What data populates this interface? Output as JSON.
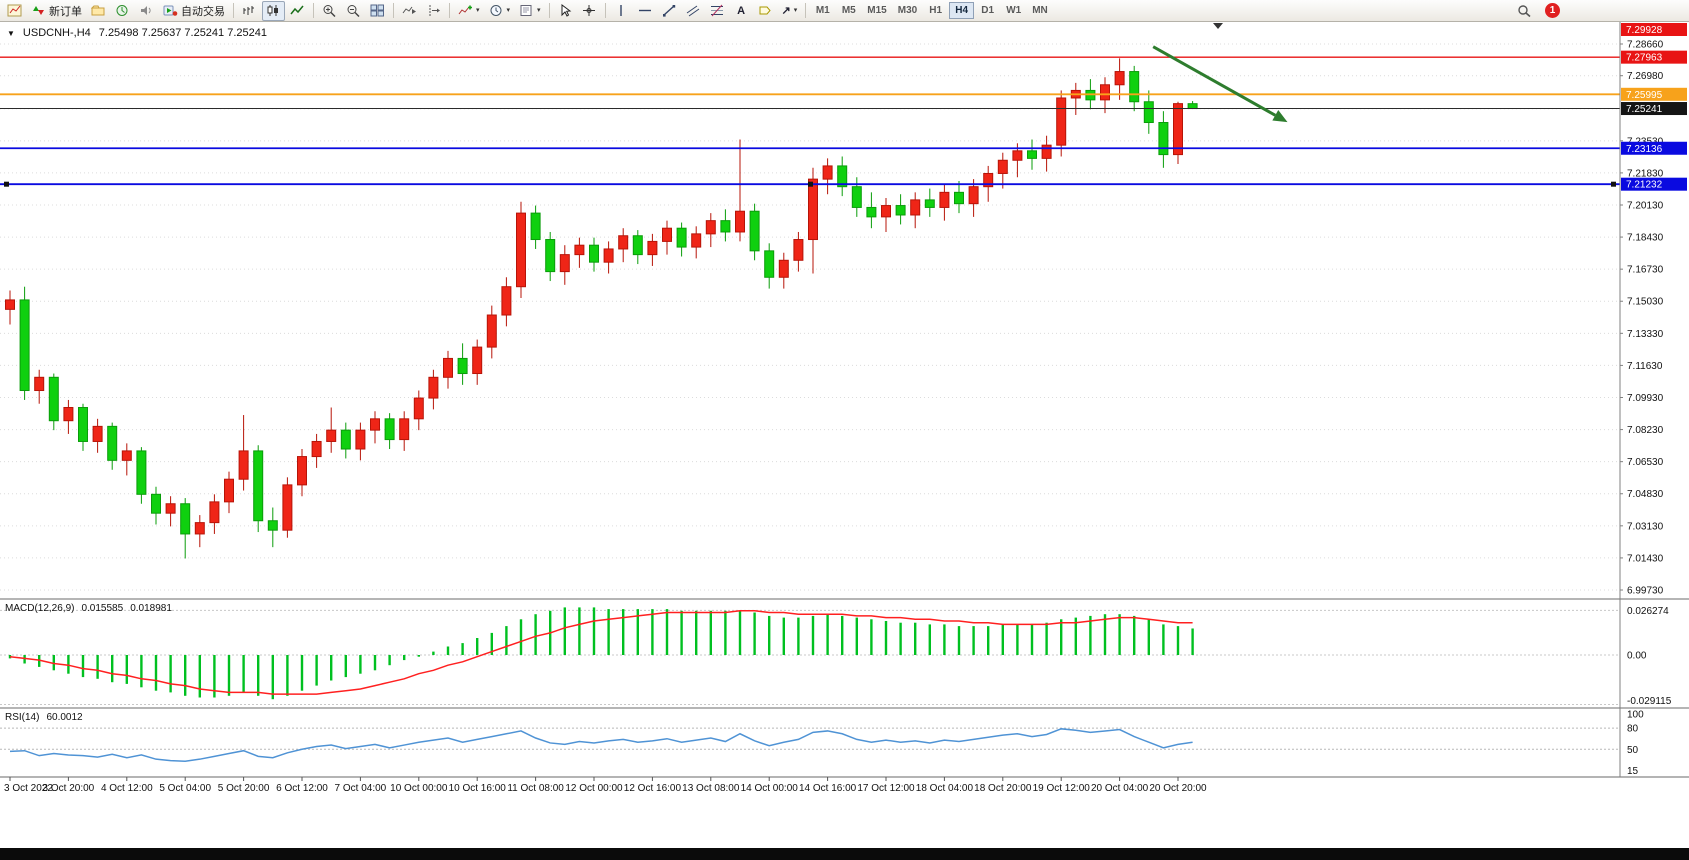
{
  "icons": {
    "menu_caret": "▼",
    "dropdown_caret": "▾",
    "text_tool": "A",
    "arrows_tool": "↗"
  },
  "toolbar": {
    "new_order_label": "新订单",
    "auto_trading_label": "自动交易",
    "timeframes": [
      "M1",
      "M5",
      "M15",
      "M30",
      "H1",
      "H4",
      "D1",
      "W1",
      "MN"
    ],
    "active_timeframe": "H4",
    "notification_count": "1"
  },
  "chart": {
    "title_symbol": "USDCNH-,H4",
    "title_ohlc": "7.25498 7.25637 7.25241 7.25241",
    "price_axis_labels": [
      "7.28660",
      "7.26980",
      "7.23530",
      "7.21830",
      "7.20130",
      "7.18430",
      "7.16730",
      "7.15030",
      "7.13330",
      "7.11630",
      "7.09930",
      "7.08230",
      "7.06530",
      "7.04830",
      "7.03130",
      "7.01430",
      "6.99730"
    ],
    "price_badges": [
      {
        "text": "7.29928",
        "bg": "#e81414"
      },
      {
        "text": "7.27963",
        "bg": "#e81414"
      },
      {
        "text": "7.25995",
        "bg": "#f7a21b"
      },
      {
        "text": "7.25241",
        "bg": "#151515"
      },
      {
        "text": "7.23136",
        "bg": "#0a0ae0"
      },
      {
        "text": "7.21232",
        "bg": "#0a0ae0"
      }
    ],
    "time_axis_labels": [
      "3 Oct 2022",
      "3 Oct 20:00",
      "4 Oct 12:00",
      "5 Oct 04:00",
      "5 Oct 20:00",
      "6 Oct 12:00",
      "7 Oct 04:00",
      "10 Oct 00:00",
      "10 Oct 16:00",
      "11 Oct 08:00",
      "12 Oct 00:00",
      "12 Oct 16:00",
      "13 Oct 08:00",
      "14 Oct 00:00",
      "14 Oct 16:00",
      "17 Oct 12:00",
      "18 Oct 04:00",
      "18 Oct 20:00",
      "19 Oct 12:00",
      "20 Oct 04:00",
      "20 Oct 20:00"
    ]
  },
  "macd": {
    "name": "MACD(12,26,9)",
    "main_value": "0.015585",
    "signal_value": "0.018981",
    "axis_labels": [
      "0.026274",
      "0.00",
      "-0.029115"
    ]
  },
  "rsi": {
    "name": "RSI(14)",
    "value": "60.0012",
    "axis_labels": [
      "100",
      "80",
      "50",
      "15"
    ]
  },
  "chart_data": {
    "type": "candlestick",
    "symbol": "USDCNH",
    "timeframe": "H4",
    "price_min": 6.9973,
    "price_max": 7.2866,
    "grid_step": 0.017,
    "grid_prices": [
      6.9973,
      7.0143,
      7.0313,
      7.0483,
      7.0653,
      7.0823,
      7.0993,
      7.1163,
      7.1333,
      7.1503,
      7.1673,
      7.1843,
      7.2013,
      7.2183,
      7.2353,
      7.2523,
      7.2698,
      7.2866
    ],
    "bull_color": "#ef2517",
    "bull_border": "#b71408",
    "bear_color": "#0fd00f",
    "bear_border": "#0a9c0a",
    "candles": [
      [
        7.146,
        7.156,
        7.138,
        7.151
      ],
      [
        7.151,
        7.158,
        7.098,
        7.103
      ],
      [
        7.103,
        7.114,
        7.096,
        7.11
      ],
      [
        7.11,
        7.112,
        7.082,
        7.087
      ],
      [
        7.087,
        7.098,
        7.08,
        7.094
      ],
      [
        7.094,
        7.096,
        7.071,
        7.076
      ],
      [
        7.076,
        7.088,
        7.07,
        7.084
      ],
      [
        7.084,
        7.086,
        7.061,
        7.066
      ],
      [
        7.066,
        7.075,
        7.058,
        7.071
      ],
      [
        7.071,
        7.073,
        7.043,
        7.048
      ],
      [
        7.048,
        7.052,
        7.032,
        7.038
      ],
      [
        7.038,
        7.047,
        7.031,
        7.043
      ],
      [
        7.043,
        7.046,
        7.014,
        7.027
      ],
      [
        7.027,
        7.037,
        7.02,
        7.033
      ],
      [
        7.033,
        7.048,
        7.027,
        7.044
      ],
      [
        7.044,
        7.06,
        7.038,
        7.056
      ],
      [
        7.056,
        7.09,
        7.05,
        7.071
      ],
      [
        7.071,
        7.074,
        7.028,
        7.034
      ],
      [
        7.034,
        7.041,
        7.02,
        7.029
      ],
      [
        7.029,
        7.057,
        7.025,
        7.053
      ],
      [
        7.053,
        7.072,
        7.047,
        7.068
      ],
      [
        7.068,
        7.08,
        7.062,
        7.076
      ],
      [
        7.076,
        7.094,
        7.07,
        7.082
      ],
      [
        7.082,
        7.086,
        7.067,
        7.072
      ],
      [
        7.072,
        7.086,
        7.066,
        7.082
      ],
      [
        7.082,
        7.092,
        7.075,
        7.088
      ],
      [
        7.088,
        7.091,
        7.072,
        7.077
      ],
      [
        7.077,
        7.092,
        7.071,
        7.088
      ],
      [
        7.088,
        7.103,
        7.082,
        7.099
      ],
      [
        7.099,
        7.114,
        7.093,
        7.11
      ],
      [
        7.11,
        7.124,
        7.104,
        7.12
      ],
      [
        7.12,
        7.128,
        7.106,
        7.112
      ],
      [
        7.112,
        7.13,
        7.106,
        7.126
      ],
      [
        7.126,
        7.148,
        7.12,
        7.143
      ],
      [
        7.143,
        7.163,
        7.137,
        7.158
      ],
      [
        7.158,
        7.203,
        7.152,
        7.197
      ],
      [
        7.197,
        7.201,
        7.178,
        7.183
      ],
      [
        7.183,
        7.187,
        7.161,
        7.166
      ],
      [
        7.166,
        7.18,
        7.159,
        7.175
      ],
      [
        7.175,
        7.184,
        7.168,
        7.18
      ],
      [
        7.18,
        7.184,
        7.166,
        7.171
      ],
      [
        7.171,
        7.182,
        7.165,
        7.178
      ],
      [
        7.178,
        7.189,
        7.171,
        7.185
      ],
      [
        7.185,
        7.188,
        7.17,
        7.175
      ],
      [
        7.175,
        7.186,
        7.169,
        7.182
      ],
      [
        7.182,
        7.193,
        7.175,
        7.189
      ],
      [
        7.189,
        7.192,
        7.174,
        7.179
      ],
      [
        7.179,
        7.19,
        7.173,
        7.186
      ],
      [
        7.186,
        7.197,
        7.179,
        7.193
      ],
      [
        7.193,
        7.199,
        7.182,
        7.187
      ],
      [
        7.187,
        7.236,
        7.182,
        7.198
      ],
      [
        7.198,
        7.202,
        7.172,
        7.177
      ],
      [
        7.177,
        7.181,
        7.157,
        7.163
      ],
      [
        7.163,
        7.176,
        7.157,
        7.172
      ],
      [
        7.172,
        7.187,
        7.166,
        7.183
      ],
      [
        7.183,
        7.221,
        7.165,
        7.215
      ],
      [
        7.215,
        7.226,
        7.207,
        7.222
      ],
      [
        7.222,
        7.227,
        7.206,
        7.211
      ],
      [
        7.211,
        7.216,
        7.195,
        7.2
      ],
      [
        7.2,
        7.208,
        7.189,
        7.195
      ],
      [
        7.195,
        7.205,
        7.187,
        7.201
      ],
      [
        7.201,
        7.207,
        7.191,
        7.196
      ],
      [
        7.196,
        7.208,
        7.189,
        7.204
      ],
      [
        7.204,
        7.21,
        7.195,
        7.2
      ],
      [
        7.2,
        7.212,
        7.193,
        7.208
      ],
      [
        7.208,
        7.214,
        7.197,
        7.202
      ],
      [
        7.202,
        7.215,
        7.195,
        7.211
      ],
      [
        7.211,
        7.222,
        7.203,
        7.218
      ],
      [
        7.218,
        7.229,
        7.21,
        7.225
      ],
      [
        7.225,
        7.234,
        7.216,
        7.23
      ],
      [
        7.23,
        7.236,
        7.22,
        7.226
      ],
      [
        7.226,
        7.238,
        7.219,
        7.233
      ],
      [
        7.233,
        7.262,
        7.227,
        7.258
      ],
      [
        7.258,
        7.266,
        7.249,
        7.262
      ],
      [
        7.262,
        7.268,
        7.252,
        7.257
      ],
      [
        7.257,
        7.269,
        7.25,
        7.265
      ],
      [
        7.265,
        7.279,
        7.257,
        7.272
      ],
      [
        7.272,
        7.275,
        7.251,
        7.256
      ],
      [
        7.256,
        7.262,
        7.239,
        7.245
      ],
      [
        7.245,
        7.251,
        7.221,
        7.228
      ],
      [
        7.228,
        7.256,
        7.223,
        7.255
      ],
      [
        7.25498,
        7.25637,
        7.25241,
        7.25241
      ]
    ],
    "lines": [
      {
        "name": "alert-line",
        "price": 7.29928,
        "color": "#e81414",
        "width": 1.4
      },
      {
        "name": "resistance-line",
        "price": 7.27963,
        "color": "#e81414",
        "width": 1.4
      },
      {
        "name": "orange-level-line",
        "price": 7.25995,
        "color": "#f7a21b",
        "width": 1.8
      },
      {
        "name": "current-price-line",
        "price": 7.25241,
        "color": "#2b2b2b",
        "width": 1
      },
      {
        "name": "support-line-1",
        "price": 7.23136,
        "color": "#0a0ae0",
        "width": 1.8
      },
      {
        "name": "support-line-2",
        "price": 7.21232,
        "color": "#0a0ae0",
        "width": 1.8,
        "selected": true
      }
    ],
    "trend_arrow": {
      "from_bar": 78.3,
      "from_price": 7.2852,
      "to_bar": 87.5,
      "to_price": 7.2452,
      "color": "#2e7d2e"
    },
    "macd": {
      "histogram_color": "#00c020",
      "signal_color": "#ff2020",
      "axis_values": [
        0.026274,
        0,
        -0.029115
      ],
      "histogram": [
        -0.002,
        -0.005,
        -0.007,
        -0.009,
        -0.011,
        -0.013,
        -0.014,
        -0.016,
        -0.017,
        -0.019,
        -0.021,
        -0.022,
        -0.024,
        -0.025,
        -0.025,
        -0.024,
        -0.022,
        -0.024,
        -0.026,
        -0.024,
        -0.021,
        -0.018,
        -0.015,
        -0.013,
        -0.011,
        -0.009,
        -0.006,
        -0.003,
        -0.001,
        0.002,
        0.005,
        0.007,
        0.01,
        0.013,
        0.017,
        0.021,
        0.024,
        0.026,
        0.028,
        0.028,
        0.028,
        0.027,
        0.027,
        0.027,
        0.027,
        0.027,
        0.026,
        0.026,
        0.026,
        0.026,
        0.026,
        0.025,
        0.023,
        0.022,
        0.022,
        0.023,
        0.024,
        0.023,
        0.022,
        0.021,
        0.02,
        0.019,
        0.019,
        0.018,
        0.018,
        0.017,
        0.017,
        0.017,
        0.018,
        0.018,
        0.018,
        0.019,
        0.021,
        0.022,
        0.023,
        0.024,
        0.024,
        0.023,
        0.021,
        0.018,
        0.017,
        0.0156
      ],
      "signal": [
        -0.001,
        -0.002,
        -0.003,
        -0.005,
        -0.006,
        -0.008,
        -0.009,
        -0.011,
        -0.012,
        -0.014,
        -0.015,
        -0.017,
        -0.018,
        -0.02,
        -0.021,
        -0.022,
        -0.022,
        -0.022,
        -0.023,
        -0.023,
        -0.023,
        -0.023,
        -0.022,
        -0.021,
        -0.02,
        -0.018,
        -0.016,
        -0.014,
        -0.011,
        -0.009,
        -0.006,
        -0.004,
        -0.001,
        0.002,
        0.005,
        0.008,
        0.011,
        0.013,
        0.016,
        0.018,
        0.02,
        0.021,
        0.022,
        0.023,
        0.024,
        0.025,
        0.025,
        0.025,
        0.025,
        0.025,
        0.026,
        0.026,
        0.025,
        0.025,
        0.024,
        0.024,
        0.024,
        0.024,
        0.023,
        0.023,
        0.022,
        0.022,
        0.021,
        0.021,
        0.02,
        0.02,
        0.019,
        0.019,
        0.018,
        0.018,
        0.018,
        0.018,
        0.019,
        0.019,
        0.02,
        0.021,
        0.022,
        0.022,
        0.021,
        0.02,
        0.019,
        0.018981
      ]
    },
    "rsi": {
      "line_color": "#4f93d5",
      "range": [
        15,
        100
      ],
      "levels": [
        80,
        50
      ],
      "axis_values": [
        100,
        80,
        50,
        15
      ],
      "values": [
        47,
        48,
        41,
        44,
        42,
        41,
        39,
        43,
        38,
        42,
        36,
        34,
        33,
        36,
        40,
        44,
        48,
        40,
        38,
        45,
        50,
        54,
        56,
        51,
        54,
        57,
        52,
        56,
        60,
        63,
        66,
        60,
        64,
        68,
        72,
        76,
        66,
        59,
        57,
        61,
        59,
        62,
        64,
        60,
        62,
        65,
        60,
        63,
        66,
        61,
        72,
        62,
        55,
        60,
        64,
        74,
        76,
        72,
        64,
        60,
        63,
        60,
        62,
        59,
        63,
        61,
        64,
        67,
        70,
        72,
        68,
        71,
        79,
        77,
        74,
        76,
        78,
        68,
        60,
        52,
        57,
        60
      ]
    }
  }
}
